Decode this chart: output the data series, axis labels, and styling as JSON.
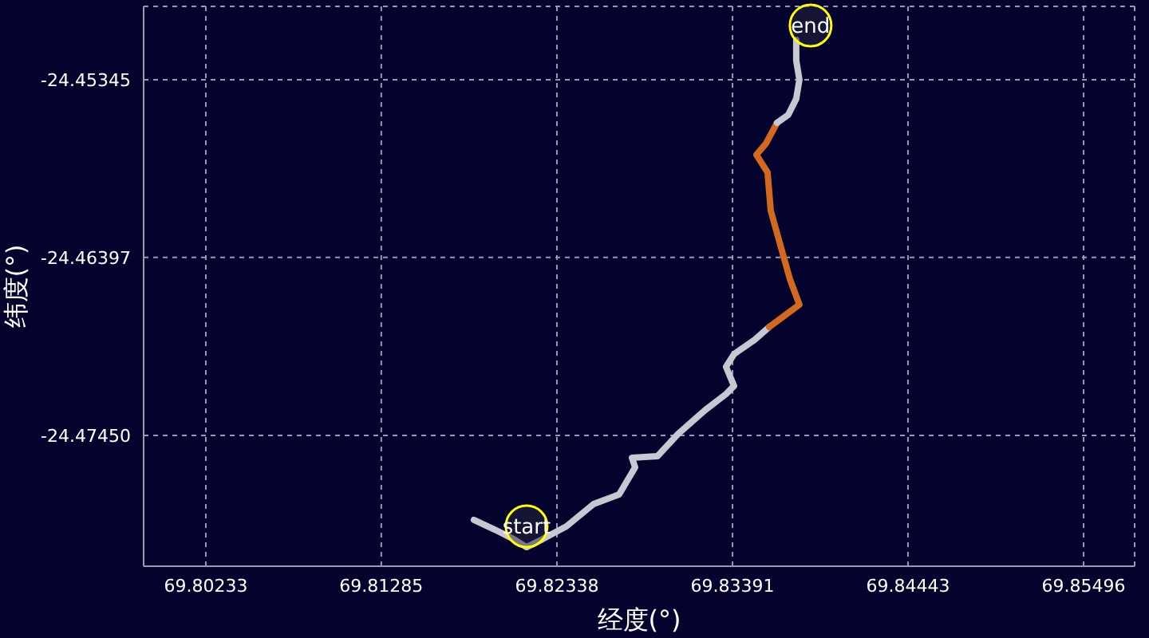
{
  "chart_data": {
    "type": "line",
    "xlabel": "经度(°)",
    "ylabel": "纬度(°)",
    "xlim": [
      69.7986,
      69.85802
    ],
    "ylim": [
      -24.48224,
      -24.44911
    ],
    "xticks": [
      69.80233,
      69.81285,
      69.82338,
      69.83391,
      69.84443,
      69.85496
    ],
    "yticks": [
      -24.45345,
      -24.46397,
      {
        "value": -24.4745,
        "label": "-24.47450"
      }
    ],
    "grid": true,
    "marker": "none",
    "line_style": "solid",
    "series": [
      {
        "color": "#c8c8d2",
        "x": [
          69.8184,
          69.81965,
          69.8208,
          69.82156,
          69.82252,
          69.82395,
          69.82558,
          69.82711,
          69.82807,
          69.82788,
          69.82941,
          69.83065,
          69.83228,
          69.83352,
          69.834,
          69.83352,
          69.834,
          69.83524,
          69.83611
        ],
        "values": [
          -24.4795,
          -24.48007,
          -24.48064,
          -24.48111,
          -24.48064,
          -24.47988,
          -24.47856,
          -24.47799,
          -24.47639,
          -24.47582,
          -24.47573,
          -24.47441,
          -24.47299,
          -24.47205,
          -24.47157,
          -24.47044,
          -24.46969,
          -24.46884,
          -24.46808
        ]
      },
      {
        "color": "#d2691e",
        "x": [
          69.83611,
          69.83792,
          69.83735,
          69.83668,
          69.8362,
          69.83601,
          69.83534,
          69.83591,
          69.83658
        ],
        "values": [
          -24.46808,
          -24.46676,
          -24.46525,
          -24.46289,
          -24.46119,
          -24.45893,
          -24.45789,
          -24.45723,
          -24.456
        ]
      },
      {
        "color": "#c8c8d2",
        "x": [
          69.83658,
          69.83725,
          69.83773,
          69.83792,
          69.83773,
          69.83773
        ],
        "values": [
          -24.456,
          -24.45553,
          -24.45458,
          -24.45345,
          -24.45232,
          -24.45109
        ]
      }
    ],
    "annotations": [
      {
        "text": "start",
        "x": 69.82156,
        "y": -24.47988
      },
      {
        "text": "end",
        "x": 69.83859,
        "y": -24.45024
      }
    ]
  }
}
